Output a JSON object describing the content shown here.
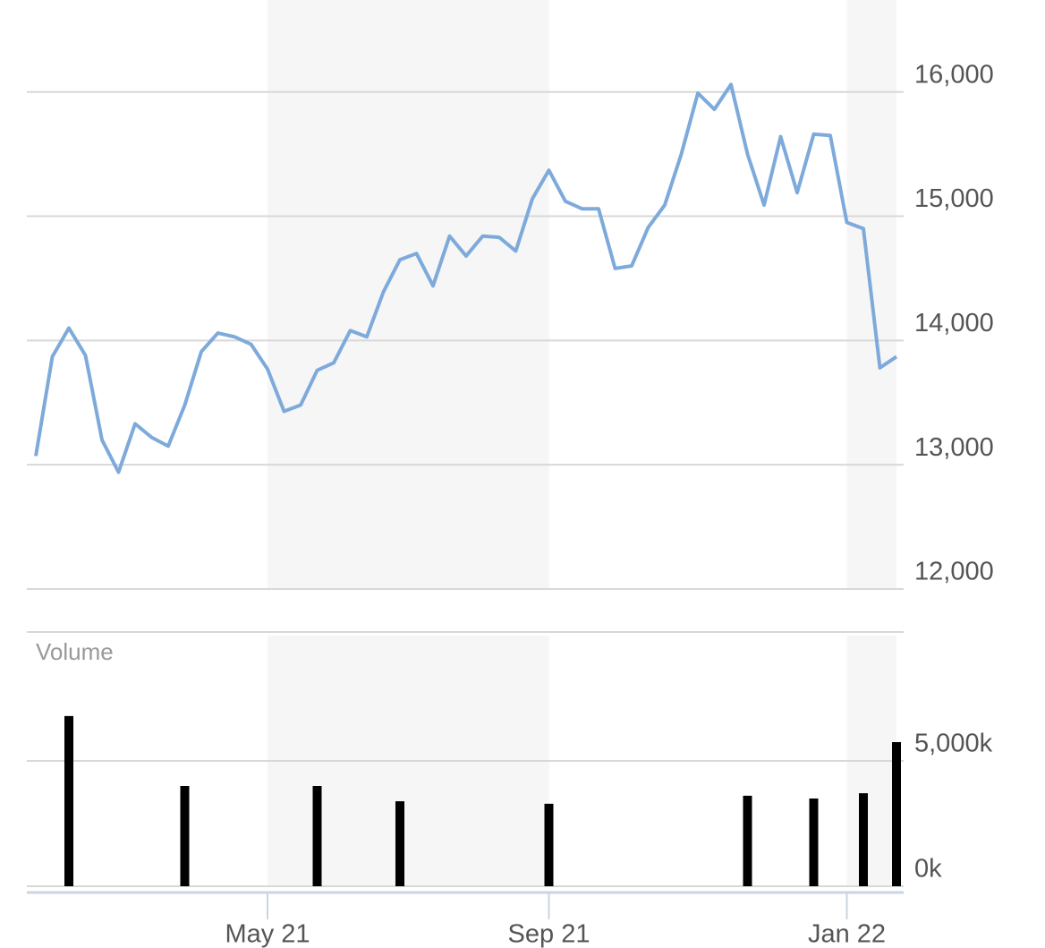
{
  "chart_data": [
    {
      "type": "line",
      "categories": [
        null,
        null,
        null,
        null,
        null,
        null,
        null,
        null,
        null,
        null,
        null,
        null,
        null,
        null,
        "May 21",
        null,
        null,
        null,
        null,
        null,
        null,
        null,
        null,
        null,
        null,
        null,
        null,
        null,
        null,
        null,
        null,
        "Sep 21",
        null,
        null,
        null,
        null,
        null,
        null,
        null,
        null,
        null,
        null,
        null,
        null,
        null,
        null,
        null,
        null,
        null,
        "Jan 22",
        null,
        null,
        null
      ],
      "values": [
        13070,
        13870,
        14100,
        13880,
        13200,
        12940,
        13330,
        13220,
        13150,
        13480,
        13910,
        14060,
        14030,
        13970,
        13770,
        13430,
        13480,
        13760,
        13820,
        14080,
        14030,
        14390,
        14650,
        14700,
        14440,
        14840,
        14680,
        14840,
        14830,
        14720,
        15140,
        15370,
        15120,
        15060,
        15060,
        14580,
        14600,
        14910,
        15090,
        15500,
        15990,
        15860,
        16060,
        15500,
        15090,
        15640,
        15190,
        15660,
        15650,
        14950,
        14900,
        13780,
        13870
      ],
      "color": "#7eaadb",
      "ylim": [
        12000,
        16740
      ],
      "yticks": [
        {
          "value": 12000,
          "label": "12,000"
        },
        {
          "value": 13000,
          "label": "13,000"
        },
        {
          "value": 14000,
          "label": "14,000"
        },
        {
          "value": 15000,
          "label": "15,000"
        },
        {
          "value": 16000,
          "label": "16,000"
        }
      ],
      "grid": true
    },
    {
      "type": "bar",
      "title": "Volume",
      "values": [
        null,
        null,
        6790,
        null,
        null,
        null,
        null,
        null,
        null,
        4000,
        null,
        null,
        null,
        null,
        null,
        null,
        null,
        4000,
        null,
        null,
        null,
        null,
        3390,
        null,
        null,
        null,
        null,
        null,
        null,
        null,
        null,
        3290,
        null,
        null,
        null,
        null,
        null,
        null,
        null,
        null,
        null,
        null,
        null,
        3610,
        null,
        null,
        null,
        3500,
        null,
        null,
        3710,
        null,
        5750
      ],
      "color": "#000000",
      "ylim": [
        0,
        10000
      ],
      "yticks": [
        {
          "value": 0,
          "label": "0k"
        },
        {
          "value": 5000,
          "label": "5,000k"
        }
      ],
      "grid": true
    }
  ]
}
